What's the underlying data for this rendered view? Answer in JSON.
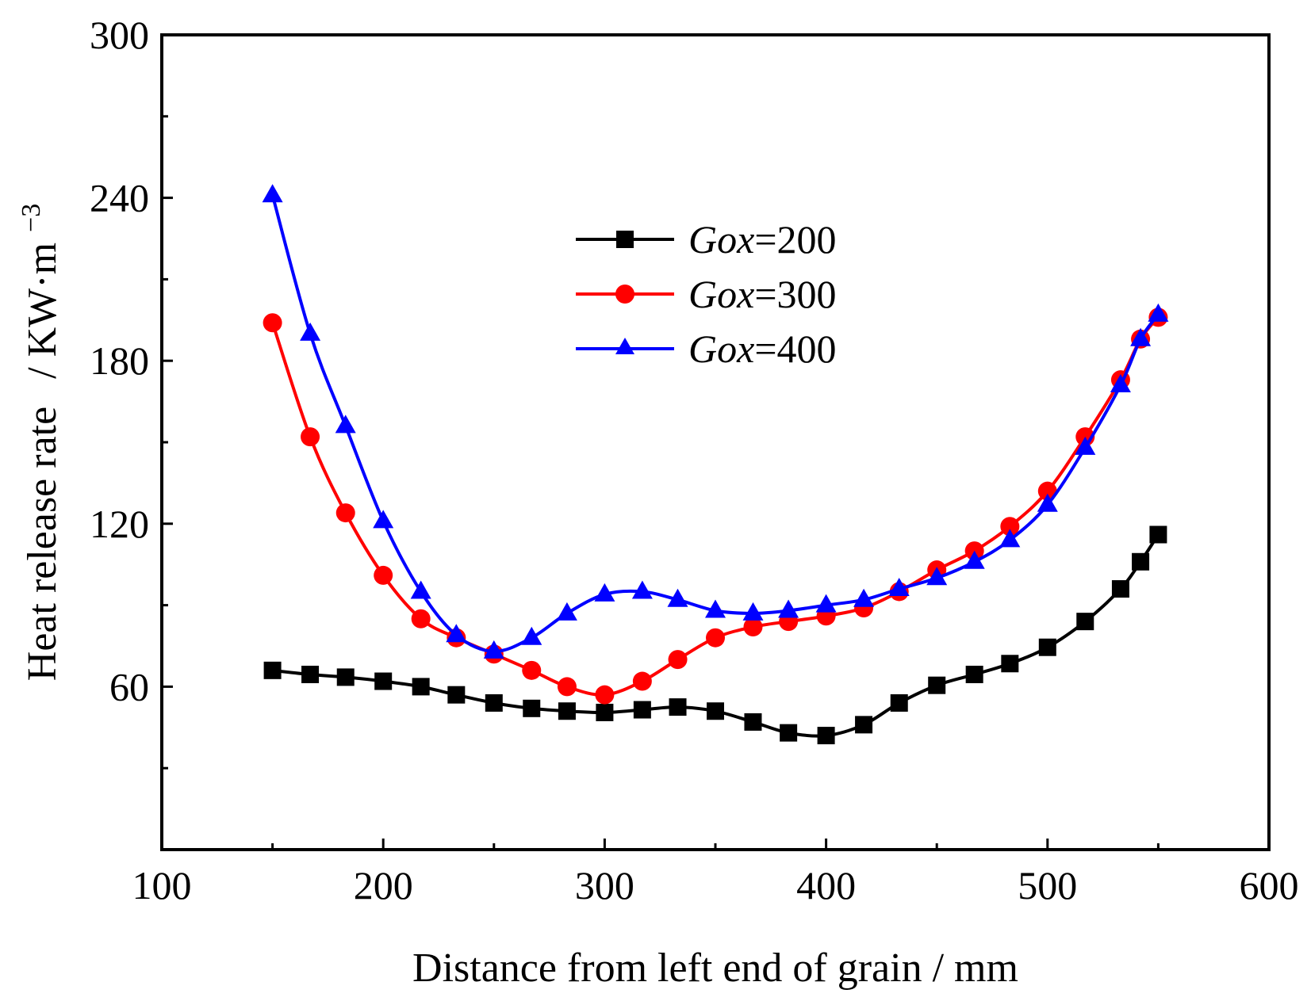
{
  "chart_data": {
    "type": "line",
    "title": "",
    "xlabel": "Distance from left end of grain / mm",
    "ylabel": "Heat release rate",
    "ylabel_unit": "/ KW·m",
    "ylabel_unit_exp": "−3",
    "xlim": [
      100,
      600
    ],
    "ylim": [
      0,
      300
    ],
    "xticks": [
      100,
      200,
      300,
      400,
      500,
      600
    ],
    "yticks": [
      60,
      120,
      180,
      240,
      300
    ],
    "grid": false,
    "legend_position": "top-center",
    "series": [
      {
        "name": "Gox=200",
        "legend_var": "Gox",
        "legend_value": "=200",
        "color": "#000000",
        "marker": "square",
        "x": [
          150,
          167,
          183,
          200,
          217,
          233,
          250,
          267,
          283,
          300,
          317,
          333,
          350,
          367,
          383,
          400,
          417,
          433,
          450,
          467,
          483,
          500,
          517,
          533,
          542,
          550
        ],
        "y": [
          66,
          64.5,
          63.5,
          62,
          60,
          57,
          54,
          52,
          51,
          50.5,
          51.5,
          52.5,
          51,
          47,
          43,
          42,
          46,
          54,
          60.5,
          64.5,
          68.5,
          74.5,
          84,
          96,
          106,
          116
        ]
      },
      {
        "name": "Gox=300",
        "legend_var": "Gox",
        "legend_value": "=300",
        "color": "#ff0000",
        "marker": "circle",
        "x": [
          150,
          167,
          183,
          200,
          217,
          233,
          250,
          267,
          283,
          300,
          317,
          333,
          350,
          367,
          383,
          400,
          417,
          433,
          450,
          467,
          483,
          500,
          517,
          533,
          542,
          550
        ],
        "y": [
          194,
          152,
          124,
          101,
          85,
          78,
          72,
          66,
          60,
          57,
          62,
          70,
          78,
          82,
          84,
          86,
          89,
          95,
          103,
          110,
          119,
          132,
          152,
          173,
          188,
          196
        ]
      },
      {
        "name": "Gox=400",
        "legend_var": "Gox",
        "legend_value": "=400",
        "color": "#0000ff",
        "marker": "triangle",
        "x": [
          150,
          167,
          183,
          200,
          217,
          233,
          250,
          267,
          283,
          300,
          317,
          333,
          350,
          367,
          383,
          400,
          417,
          433,
          450,
          467,
          483,
          500,
          517,
          533,
          542,
          550
        ],
        "y": [
          241,
          190,
          156,
          121,
          95,
          79,
          73,
          78,
          87,
          94,
          95,
          92,
          88,
          87,
          88,
          90,
          92,
          96,
          100,
          106,
          114,
          127,
          148,
          171,
          188,
          197
        ]
      }
    ]
  }
}
